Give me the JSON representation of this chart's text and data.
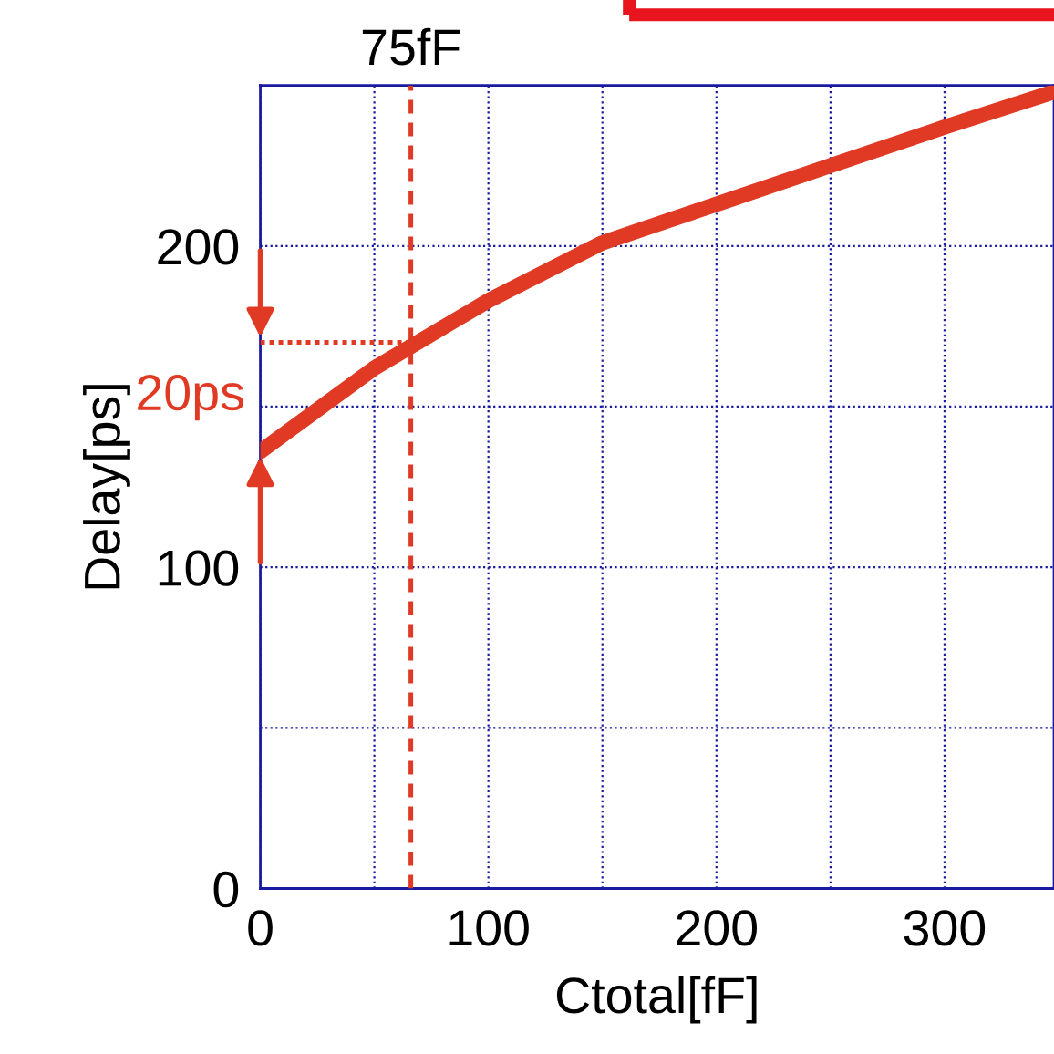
{
  "chart_data": {
    "type": "line",
    "xlabel": "Ctotal[fF]",
    "ylabel": "Delay[ps]",
    "xlim": [
      0,
      348
    ],
    "ylim": [
      0,
      250
    ],
    "xticks": [
      0,
      {
        "value": 50,
        "label": null
      },
      100,
      {
        "value": 150,
        "label": null
      },
      200,
      {
        "value": 250,
        "label": null
      },
      300
    ],
    "yticks": [
      0,
      {
        "value": 50,
        "label": null
      },
      100,
      {
        "value": 150,
        "label": null
      },
      200
    ],
    "grid": true,
    "marker": "none",
    "series": [
      {
        "color": "#e03a25",
        "line_style": "solid",
        "x": [
          0,
          50,
          100,
          150,
          200,
          250,
          300,
          348
        ],
        "values": [
          136,
          162,
          183,
          201,
          213,
          225,
          237,
          248
        ]
      },
      {
        "color": "#e03a25",
        "line_style": "dotted",
        "x": [
          0,
          66
        ],
        "values": [
          170,
          170
        ]
      }
    ],
    "ref_lines": [
      {
        "axis": "x",
        "value": 66,
        "label": "75fF",
        "color": "#e03a25",
        "line_style": "dashed"
      }
    ],
    "annotations": [
      "20ps"
    ]
  }
}
